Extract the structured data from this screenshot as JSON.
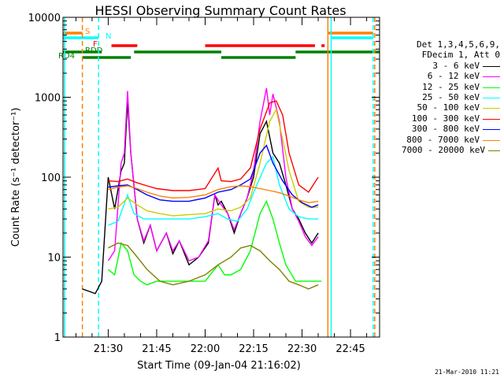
{
  "chart_data": {
    "type": "line",
    "title": "HESSI Observing Summary Count Rates",
    "xlabel": "Start Time (09-Jan-04 21:16:02)",
    "ylabel": "Count Rate (s⁻¹ detector⁻¹)",
    "yscale": "log",
    "ylim": [
      1,
      10000
    ],
    "yticks": [
      "1",
      "10",
      "100",
      "1000",
      "10000"
    ],
    "xlim": [
      "21:16",
      "22:54"
    ],
    "xticks": [
      "21:30",
      "21:45",
      "22:00",
      "22:15",
      "22:30",
      "22:45"
    ],
    "legend": {
      "placement": "right",
      "header": [
        "Det 1,3,4,5,6,9,",
        "FDecim 1, Att 0"
      ]
    },
    "series": [
      {
        "name": "3 - 6 keV",
        "color": "#000000",
        "points": [
          [
            "21:22",
            4
          ],
          [
            "21:26",
            3.5
          ],
          [
            "21:28",
            5
          ],
          [
            "21:30",
            100
          ],
          [
            "21:32",
            40
          ],
          [
            "21:34",
            120
          ],
          [
            "21:35",
            150
          ],
          [
            "21:36",
            900
          ],
          [
            "21:37",
            200
          ],
          [
            "21:39",
            30
          ],
          [
            "21:41",
            15
          ],
          [
            "21:43",
            25
          ],
          [
            "21:45",
            12
          ],
          [
            "21:48",
            20
          ],
          [
            "21:50",
            11
          ],
          [
            "21:52",
            16
          ],
          [
            "21:55",
            8
          ],
          [
            "21:58",
            10
          ],
          [
            "22:01",
            15
          ],
          [
            "22:03",
            60
          ],
          [
            "22:04",
            45
          ],
          [
            "22:05",
            50
          ],
          [
            "22:07",
            35
          ],
          [
            "22:09",
            20
          ],
          [
            "22:11",
            35
          ],
          [
            "22:13",
            55
          ],
          [
            "22:15",
            100
          ],
          [
            "22:17",
            350
          ],
          [
            "22:19",
            500
          ],
          [
            "22:21",
            200
          ],
          [
            "22:23",
            150
          ],
          [
            "22:25",
            80
          ],
          [
            "22:27",
            40
          ],
          [
            "22:29",
            30
          ],
          [
            "22:31",
            20
          ],
          [
            "22:33",
            15
          ],
          [
            "22:35",
            20
          ]
        ]
      },
      {
        "name": "6 - 12 keV",
        "color": "#ff00ff",
        "points": [
          [
            "21:30",
            9
          ],
          [
            "21:32",
            12
          ],
          [
            "21:34",
            150
          ],
          [
            "21:35",
            200
          ],
          [
            "21:36",
            1200
          ],
          [
            "21:37",
            200
          ],
          [
            "21:39",
            30
          ],
          [
            "21:41",
            16
          ],
          [
            "21:43",
            25
          ],
          [
            "21:45",
            12
          ],
          [
            "21:48",
            20
          ],
          [
            "21:50",
            12
          ],
          [
            "21:52",
            16
          ],
          [
            "21:55",
            9
          ],
          [
            "21:58",
            10
          ],
          [
            "22:01",
            16
          ],
          [
            "22:03",
            60
          ],
          [
            "22:05",
            45
          ],
          [
            "22:07",
            35
          ],
          [
            "22:09",
            22
          ],
          [
            "22:11",
            35
          ],
          [
            "22:13",
            55
          ],
          [
            "22:15",
            120
          ],
          [
            "22:17",
            500
          ],
          [
            "22:19",
            1300
          ],
          [
            "22:20",
            600
          ],
          [
            "22:21",
            1100
          ],
          [
            "22:23",
            500
          ],
          [
            "22:25",
            100
          ],
          [
            "22:27",
            40
          ],
          [
            "22:29",
            28
          ],
          [
            "22:31",
            18
          ],
          [
            "22:33",
            14
          ],
          [
            "22:35",
            18
          ]
        ]
      },
      {
        "name": "12 - 25 keV",
        "color": "#00ff00",
        "points": [
          [
            "21:30",
            7
          ],
          [
            "21:32",
            6
          ],
          [
            "21:34",
            15
          ],
          [
            "21:36",
            12
          ],
          [
            "21:38",
            6
          ],
          [
            "21:40",
            5
          ],
          [
            "21:42",
            4.5
          ],
          [
            "21:45",
            5
          ],
          [
            "21:48",
            5
          ],
          [
            "21:52",
            5
          ],
          [
            "21:56",
            5
          ],
          [
            "22:00",
            5
          ],
          [
            "22:04",
            8
          ],
          [
            "22:06",
            6
          ],
          [
            "22:08",
            6
          ],
          [
            "22:11",
            7
          ],
          [
            "22:14",
            12
          ],
          [
            "22:17",
            35
          ],
          [
            "22:19",
            50
          ],
          [
            "22:21",
            30
          ],
          [
            "22:23",
            15
          ],
          [
            "22:25",
            8
          ],
          [
            "22:28",
            5
          ],
          [
            "22:31",
            5
          ],
          [
            "22:34",
            5
          ],
          [
            "22:36",
            5
          ]
        ]
      },
      {
        "name": "25 - 50 keV",
        "color": "#00ffff",
        "points": [
          [
            "21:30",
            25
          ],
          [
            "21:33",
            28
          ],
          [
            "21:36",
            60
          ],
          [
            "21:38",
            35
          ],
          [
            "21:41",
            30
          ],
          [
            "21:45",
            30
          ],
          [
            "21:50",
            30
          ],
          [
            "21:55",
            30
          ],
          [
            "22:00",
            32
          ],
          [
            "22:04",
            35
          ],
          [
            "22:07",
            30
          ],
          [
            "22:10",
            28
          ],
          [
            "22:13",
            40
          ],
          [
            "22:16",
            80
          ],
          [
            "22:19",
            150
          ],
          [
            "22:21",
            180
          ],
          [
            "22:23",
            80
          ],
          [
            "22:26",
            40
          ],
          [
            "22:29",
            32
          ],
          [
            "22:32",
            30
          ],
          [
            "22:35",
            30
          ]
        ]
      },
      {
        "name": "50 - 100 keV",
        "color": "#cccc00",
        "points": [
          [
            "21:30",
            40
          ],
          [
            "21:33",
            42
          ],
          [
            "21:36",
            55
          ],
          [
            "21:39",
            45
          ],
          [
            "21:42",
            38
          ],
          [
            "21:46",
            35
          ],
          [
            "21:50",
            33
          ],
          [
            "21:55",
            34
          ],
          [
            "22:00",
            35
          ],
          [
            "22:04",
            40
          ],
          [
            "22:08",
            38
          ],
          [
            "22:11",
            42
          ],
          [
            "22:14",
            55
          ],
          [
            "22:17",
            150
          ],
          [
            "22:20",
            500
          ],
          [
            "22:22",
            700
          ],
          [
            "22:24",
            300
          ],
          [
            "22:26",
            120
          ],
          [
            "22:29",
            50
          ],
          [
            "22:32",
            42
          ],
          [
            "22:35",
            42
          ]
        ]
      },
      {
        "name": "100 - 300 keV",
        "color": "#ff0000",
        "points": [
          [
            "21:30",
            90
          ],
          [
            "21:33",
            88
          ],
          [
            "21:36",
            95
          ],
          [
            "21:39",
            85
          ],
          [
            "21:42",
            78
          ],
          [
            "21:45",
            72
          ],
          [
            "21:50",
            68
          ],
          [
            "21:55",
            68
          ],
          [
            "22:00",
            72
          ],
          [
            "22:04",
            130
          ],
          [
            "22:05",
            90
          ],
          [
            "22:08",
            88
          ],
          [
            "22:11",
            95
          ],
          [
            "22:14",
            130
          ],
          [
            "22:17",
            400
          ],
          [
            "22:20",
            850
          ],
          [
            "22:22",
            900
          ],
          [
            "22:24",
            600
          ],
          [
            "22:26",
            200
          ],
          [
            "22:29",
            80
          ],
          [
            "22:32",
            65
          ],
          [
            "22:35",
            100
          ]
        ]
      },
      {
        "name": "300 - 800 keV",
        "color": "#0000ff",
        "points": [
          [
            "21:30",
            75
          ],
          [
            "21:33",
            78
          ],
          [
            "21:36",
            80
          ],
          [
            "21:39",
            70
          ],
          [
            "21:42",
            60
          ],
          [
            "21:46",
            52
          ],
          [
            "21:50",
            50
          ],
          [
            "21:55",
            50
          ],
          [
            "22:00",
            55
          ],
          [
            "22:04",
            65
          ],
          [
            "22:08",
            70
          ],
          [
            "22:11",
            80
          ],
          [
            "22:14",
            95
          ],
          [
            "22:17",
            200
          ],
          [
            "22:19",
            250
          ],
          [
            "22:21",
            150
          ],
          [
            "22:24",
            90
          ],
          [
            "22:27",
            60
          ],
          [
            "22:30",
            48
          ],
          [
            "22:33",
            42
          ],
          [
            "22:35",
            45
          ]
        ]
      },
      {
        "name": "800 - 7000 keV",
        "color": "#ff8000",
        "points": [
          [
            "21:30",
            70
          ],
          [
            "21:33",
            75
          ],
          [
            "21:36",
            78
          ],
          [
            "21:39",
            72
          ],
          [
            "21:42",
            65
          ],
          [
            "21:46",
            58
          ],
          [
            "21:50",
            55
          ],
          [
            "21:55",
            56
          ],
          [
            "22:00",
            60
          ],
          [
            "22:04",
            70
          ],
          [
            "22:08",
            76
          ],
          [
            "22:11",
            78
          ],
          [
            "22:14",
            76
          ],
          [
            "22:17",
            72
          ],
          [
            "22:20",
            68
          ],
          [
            "22:23",
            64
          ],
          [
            "22:26",
            58
          ],
          [
            "22:29",
            52
          ],
          [
            "22:32",
            48
          ],
          [
            "22:35",
            50
          ]
        ]
      },
      {
        "name": "7000 - 20000 keV",
        "color": "#808000",
        "points": [
          [
            "21:30",
            13
          ],
          [
            "21:33",
            15
          ],
          [
            "21:36",
            14
          ],
          [
            "21:39",
            10
          ],
          [
            "21:42",
            7
          ],
          [
            "21:46",
            5
          ],
          [
            "21:50",
            4.5
          ],
          [
            "21:55",
            5
          ],
          [
            "22:00",
            6
          ],
          [
            "22:04",
            8
          ],
          [
            "22:08",
            10
          ],
          [
            "22:11",
            13
          ],
          [
            "22:14",
            14
          ],
          [
            "22:17",
            12
          ],
          [
            "22:20",
            9
          ],
          [
            "22:23",
            7
          ],
          [
            "22:26",
            5
          ],
          [
            "22:29",
            4.5
          ],
          [
            "22:32",
            4
          ],
          [
            "22:35",
            4.5
          ]
        ]
      }
    ],
    "flags": [
      {
        "label": "S",
        "color": "#ff8000",
        "intervals": [
          [
            "21:16",
            "21:22"
          ],
          [
            "22:38",
            "22:52"
          ]
        ]
      },
      {
        "label": "N",
        "color": "#00ffff",
        "intervals": [
          [
            "21:16",
            "21:27"
          ],
          [
            "22:39",
            "22:52"
          ]
        ]
      },
      {
        "label": "F",
        "color": "#ff0000",
        "intervals": [
          [
            "21:31",
            "21:39"
          ],
          [
            "22:00",
            "22:34"
          ],
          [
            "22:36",
            "22:37"
          ]
        ]
      },
      {
        "label": "RDD",
        "color": "#008000",
        "intervals": [
          [
            "21:16",
            "21:28"
          ],
          [
            "21:38",
            "22:05"
          ],
          [
            "22:28",
            "22:54"
          ]
        ]
      },
      {
        "label": "RD4",
        "color": "#008000",
        "intervals": [
          [
            "21:22",
            "21:37"
          ],
          [
            "22:05",
            "22:28"
          ]
        ]
      }
    ],
    "vlines": [
      {
        "time": "21:16:30",
        "color": "#00ffff",
        "style": "solid"
      },
      {
        "time": "21:22",
        "color": "#ff8000",
        "style": "dashed"
      },
      {
        "time": "21:27",
        "color": "#00ffff",
        "style": "dashed"
      },
      {
        "time": "22:38",
        "color": "#ff8000",
        "style": "solid"
      },
      {
        "time": "22:39",
        "color": "#00ffff",
        "style": "solid"
      },
      {
        "time": "22:52",
        "color": "#00ffff",
        "style": "dashed"
      },
      {
        "time": "22:52:30",
        "color": "#ff8000",
        "style": "dashed"
      }
    ]
  },
  "footer": {
    "date_stamp": "21-Mar-2010 11:21"
  }
}
